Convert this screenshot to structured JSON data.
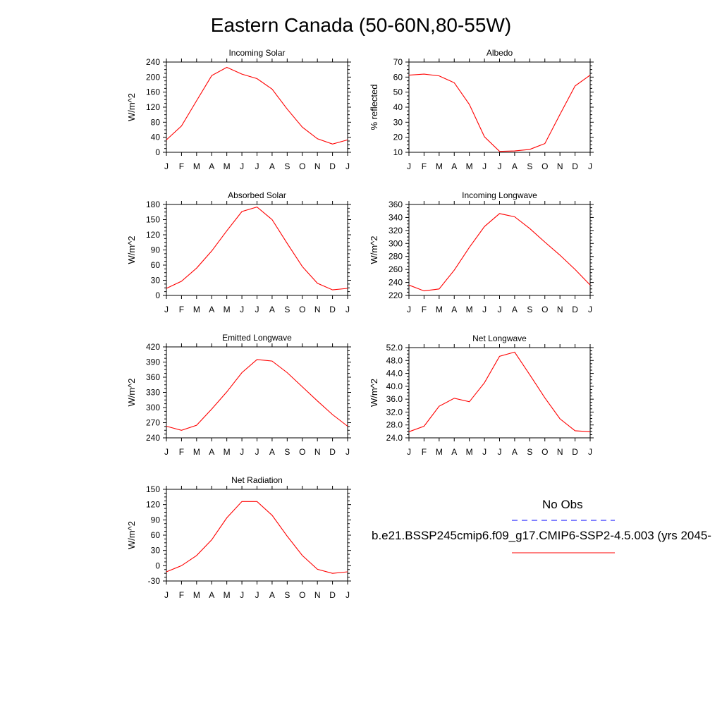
{
  "page": {
    "title": "Eastern Canada (50-60N,80-55W)"
  },
  "legend": {
    "entries": [
      {
        "label": "No Obs",
        "color": "#0000ff",
        "style": "dashed"
      },
      {
        "label": "b.e21.BSSP245cmip6.f09_g17.CMIP6-SSP2-4.5.003 (yrs 2045-",
        "color": "#ff0000",
        "style": "solid"
      }
    ]
  },
  "colors": {
    "series": "#ff0000",
    "obs": "#0000ff"
  },
  "chart_data": [
    {
      "type": "line",
      "title": "Incoming Solar",
      "xlabel": "",
      "ylabel": "W/m^2",
      "categories": [
        "J",
        "F",
        "M",
        "A",
        "M",
        "J",
        "J",
        "A",
        "S",
        "O",
        "N",
        "D",
        "J"
      ],
      "ylim": [
        0,
        240
      ],
      "yticks": [
        0,
        40,
        80,
        120,
        160,
        200,
        240
      ],
      "ytick_labels": [
        "0",
        "40",
        "80",
        "120",
        "160",
        "200",
        "240"
      ],
      "series": [
        {
          "values": [
            33,
            70,
            137,
            204,
            226,
            208,
            196,
            168,
            115,
            67,
            36,
            22,
            33
          ]
        }
      ]
    },
    {
      "type": "line",
      "title": "Albedo",
      "xlabel": "",
      "ylabel": "% reflected",
      "categories": [
        "J",
        "F",
        "M",
        "A",
        "M",
        "J",
        "J",
        "A",
        "S",
        "O",
        "N",
        "D",
        "J"
      ],
      "ylim": [
        10,
        70
      ],
      "yticks": [
        10,
        20,
        30,
        40,
        50,
        60,
        70
      ],
      "ytick_labels": [
        "10",
        "20",
        "30",
        "40",
        "50",
        "60",
        "70"
      ],
      "series": [
        {
          "values": [
            61.3,
            62,
            60.8,
            56.2,
            41.8,
            20.3,
            10.6,
            10.9,
            11.9,
            15.8,
            35.2,
            54.1,
            61.3
          ]
        }
      ]
    },
    {
      "type": "line",
      "title": "Absorbed Solar",
      "xlabel": "",
      "ylabel": "W/m^2",
      "categories": [
        "J",
        "F",
        "M",
        "A",
        "M",
        "J",
        "J",
        "A",
        "S",
        "O",
        "N",
        "D",
        "J"
      ],
      "ylim": [
        0,
        180
      ],
      "yticks": [
        0,
        30,
        60,
        90,
        120,
        150,
        180
      ],
      "ytick_labels": [
        "0",
        "30",
        "60",
        "90",
        "120",
        "150",
        "180"
      ],
      "series": [
        {
          "values": [
            14,
            28,
            54,
            88,
            128,
            166,
            175,
            150,
            103,
            57,
            24,
            11,
            14
          ]
        }
      ]
    },
    {
      "type": "line",
      "title": "Incoming Longwave",
      "xlabel": "",
      "ylabel": "W/m^2",
      "categories": [
        "J",
        "F",
        "M",
        "A",
        "M",
        "J",
        "J",
        "A",
        "S",
        "O",
        "N",
        "D",
        "J"
      ],
      "ylim": [
        220,
        360
      ],
      "yticks": [
        220,
        240,
        260,
        280,
        300,
        320,
        340,
        360
      ],
      "ytick_labels": [
        "220",
        "240",
        "260",
        "280",
        "300",
        "320",
        "340",
        "360"
      ],
      "series": [
        {
          "values": [
            236,
            227,
            230,
            259,
            294,
            326,
            346,
            341,
            323,
            302,
            282,
            260,
            236
          ]
        }
      ]
    },
    {
      "type": "line",
      "title": "Emitted Longwave",
      "xlabel": "",
      "ylabel": "W/m^2",
      "categories": [
        "J",
        "F",
        "M",
        "A",
        "M",
        "J",
        "J",
        "A",
        "S",
        "O",
        "N",
        "D",
        "J"
      ],
      "ylim": [
        240,
        420
      ],
      "yticks": [
        240,
        270,
        300,
        330,
        360,
        390,
        420
      ],
      "ytick_labels": [
        "240",
        "270",
        "300",
        "330",
        "360",
        "390",
        "420"
      ],
      "series": [
        {
          "values": [
            263,
            255,
            265,
            297,
            331,
            369,
            395,
            392,
            369,
            341,
            313,
            286,
            263
          ]
        }
      ]
    },
    {
      "type": "line",
      "title": "Net Longwave",
      "xlabel": "",
      "ylabel": "W/m^2",
      "categories": [
        "J",
        "F",
        "M",
        "A",
        "M",
        "J",
        "J",
        "A",
        "S",
        "O",
        "N",
        "D",
        "J"
      ],
      "ylim": [
        24,
        52
      ],
      "yticks": [
        24,
        28,
        32,
        36,
        40,
        44,
        48,
        52
      ],
      "ytick_labels": [
        "24.0",
        "28.0",
        "32.0",
        "36.0",
        "40.0",
        "44.0",
        "48.0",
        "52.0"
      ],
      "series": [
        {
          "values": [
            25.9,
            27.6,
            33.8,
            36.3,
            35.2,
            41.1,
            49.3,
            50.6,
            43.6,
            36.4,
            29.9,
            26.2,
            25.9
          ]
        }
      ]
    },
    {
      "type": "line",
      "title": "Net Radiation",
      "xlabel": "",
      "ylabel": "W/m^2",
      "categories": [
        "J",
        "F",
        "M",
        "A",
        "M",
        "J",
        "J",
        "A",
        "S",
        "O",
        "N",
        "D",
        "J"
      ],
      "ylim": [
        -30,
        150
      ],
      "yticks": [
        -30,
        0,
        30,
        60,
        90,
        120,
        150
      ],
      "ytick_labels": [
        "-30",
        "0",
        "30",
        "60",
        "90",
        "120",
        "150"
      ],
      "series": [
        {
          "values": [
            -12,
            0,
            20,
            51,
            94,
            126,
            126,
            99,
            58,
            20,
            -7,
            -15,
            -12
          ]
        }
      ]
    }
  ]
}
